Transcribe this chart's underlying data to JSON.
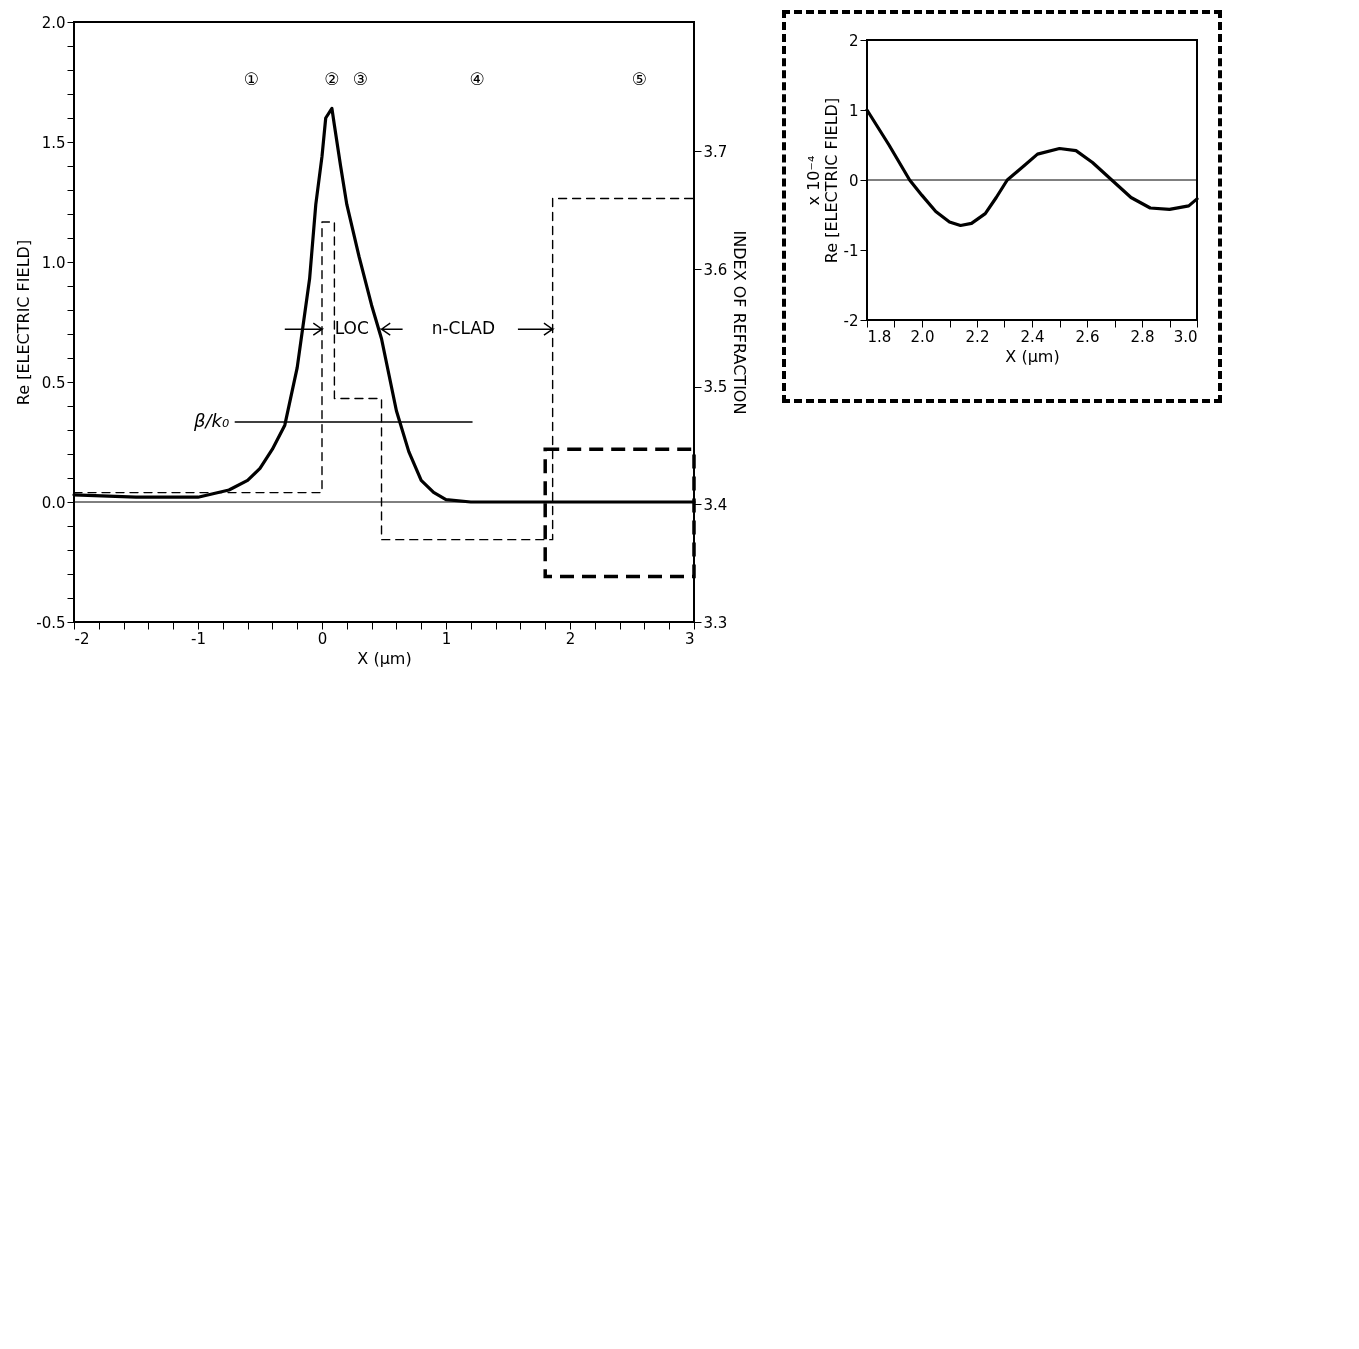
{
  "chart_data": [
    {
      "type": "line",
      "xlabel": "X (μm)",
      "ylabel": "Re [ELECTRIC FIELD]",
      "y2label": "INDEX OF REFRACTION",
      "xlim": [
        -2,
        3
      ],
      "ylim": [
        -0.5,
        2.0
      ],
      "y2lim": [
        3.3,
        3.81
      ],
      "grid": false,
      "xticks": [
        -2,
        {
          "value": -1.8,
          "label": null
        },
        {
          "value": -1.6,
          "label": null
        },
        {
          "value": -1.4,
          "label": null
        },
        {
          "value": -1.2,
          "label": null
        },
        -1,
        {
          "value": -0.8,
          "label": null
        },
        {
          "value": -0.6,
          "label": null
        },
        {
          "value": -0.4,
          "label": null
        },
        {
          "value": -0.2,
          "label": null
        },
        0,
        {
          "value": 0.2,
          "label": null
        },
        {
          "value": 0.4,
          "label": null
        },
        {
          "value": 0.6,
          "label": null
        },
        {
          "value": 0.8,
          "label": null
        },
        1,
        {
          "value": 1.2,
          "label": null
        },
        {
          "value": 1.4,
          "label": null
        },
        {
          "value": 1.6,
          "label": null
        },
        {
          "value": 1.8,
          "label": null
        },
        2,
        {
          "value": 2.2,
          "label": null
        },
        {
          "value": 2.4,
          "label": null
        },
        {
          "value": 2.6,
          "label": null
        },
        {
          "value": 2.8,
          "label": null
        },
        3
      ],
      "yticks": [
        {
          "value": -0.5,
          "label": "-0.5"
        },
        {
          "value": -0.4,
          "label": null
        },
        {
          "value": -0.3,
          "label": null
        },
        {
          "value": -0.2,
          "label": null
        },
        {
          "value": -0.1,
          "label": null
        },
        {
          "value": 0,
          "label": "0.0"
        },
        {
          "value": 0.1,
          "label": null
        },
        {
          "value": 0.2,
          "label": null
        },
        {
          "value": 0.3,
          "label": null
        },
        {
          "value": 0.4,
          "label": null
        },
        {
          "value": 0.5,
          "label": "0.5"
        },
        {
          "value": 0.6,
          "label": null
        },
        {
          "value": 0.7,
          "label": null
        },
        {
          "value": 0.8,
          "label": null
        },
        {
          "value": 0.9,
          "label": null
        },
        {
          "value": 1,
          "label": "1.0"
        },
        {
          "value": 1.1,
          "label": null
        },
        {
          "value": 1.2,
          "label": null
        },
        {
          "value": 1.3,
          "label": null
        },
        {
          "value": 1.4,
          "label": null
        },
        {
          "value": 1.5,
          "label": "1.5"
        },
        {
          "value": 1.6,
          "label": null
        },
        {
          "value": 1.7,
          "label": null
        },
        {
          "value": 1.8,
          "label": null
        },
        {
          "value": 1.9,
          "label": null
        },
        {
          "value": 2,
          "label": "2.0"
        }
      ],
      "y2ticks": [
        3.3,
        3.4,
        3.5,
        3.6,
        3.7
      ],
      "series": [
        {
          "type": "line",
          "color": "#000000",
          "line_style": "solid",
          "x": [
            -2,
            -1.5,
            -1,
            -0.75,
            -0.6,
            -0.5,
            -0.4,
            -0.3,
            -0.2,
            -0.1,
            -0.05,
            0,
            0.03,
            0.08,
            0.1,
            0.15,
            0.2,
            0.3,
            0.4,
            0.48,
            0.6,
            0.7,
            0.8,
            0.9,
            1,
            1.2,
            1.5,
            2,
            2.5,
            3
          ],
          "values": [
            0.03,
            0.02,
            0.02,
            0.05,
            0.09,
            0.14,
            0.22,
            0.32,
            0.56,
            0.93,
            1.24,
            1.44,
            1.6,
            1.64,
            1.57,
            1.4,
            1.24,
            1.02,
            0.82,
            0.68,
            0.38,
            0.21,
            0.09,
            0.04,
            0.01,
            0,
            0,
            0,
            0,
            0
          ]
        },
        {
          "type": "step",
          "axis": "y2",
          "color": "#000000",
          "line_style": "dashed",
          "x": [
            -2,
            0,
            0.1,
            0.48,
            1.86,
            3
          ],
          "values": [
            3.41,
            3.64,
            3.49,
            3.37,
            3.66,
            3.66
          ]
        },
        {
          "type": "line",
          "axis": "y2",
          "name": "β/k₀",
          "color": "#000000",
          "line_style": "solid",
          "x": [
            -0.7,
            1.21
          ],
          "values": [
            3.47,
            3.47
          ]
        }
      ],
      "ref_lines": [
        {
          "axis": "y",
          "value": 0
        }
      ],
      "annotations": [
        "n-CLAD",
        "LOC",
        "①",
        "②",
        "③",
        "④",
        "⑤"
      ]
    },
    {
      "type": "line",
      "xlabel": "X (μm)",
      "ylabel": "Re [ELECTRIC FIELD]",
      "xlim": [
        1.8,
        3.0
      ],
      "ylim": [
        -2,
        2
      ],
      "grid": false,
      "xticks": [
        1.8,
        {
          "value": 1.9,
          "label": null
        },
        {
          "value": 2.0,
          "label": "2.0"
        },
        {
          "value": 2.1,
          "label": null
        },
        2.2,
        {
          "value": 2.3,
          "label": null
        },
        2.4,
        {
          "value": 2.5,
          "label": null
        },
        2.6,
        {
          "value": 2.7,
          "label": null
        },
        2.8,
        {
          "value": 2.9,
          "label": null
        },
        {
          "value": 3.0,
          "label": "3.0"
        }
      ],
      "yticks": [
        -2,
        -1,
        0,
        1,
        2
      ],
      "series": [
        {
          "type": "line",
          "color": "#000000",
          "line_style": "solid",
          "x": [
            1.8,
            1.88,
            1.955,
            2.0,
            2.05,
            2.1,
            2.14,
            2.18,
            2.23,
            2.27,
            2.31,
            2.37,
            2.42,
            2.5,
            2.56,
            2.62,
            2.69,
            2.76,
            2.83,
            2.9,
            2.97,
            3.0
          ],
          "values": [
            1.0,
            0.5,
            0,
            -0.22,
            -0.45,
            -0.6,
            -0.65,
            -0.62,
            -0.48,
            -0.25,
            0,
            0.2,
            0.37,
            0.45,
            0.42,
            0.25,
            0,
            -0.25,
            -0.4,
            -0.42,
            -0.37,
            -0.27
          ]
        }
      ],
      "ref_lines": [
        {
          "axis": "y",
          "value": 0
        }
      ],
      "annotations": [
        "x 10⁻⁴"
      ]
    }
  ]
}
